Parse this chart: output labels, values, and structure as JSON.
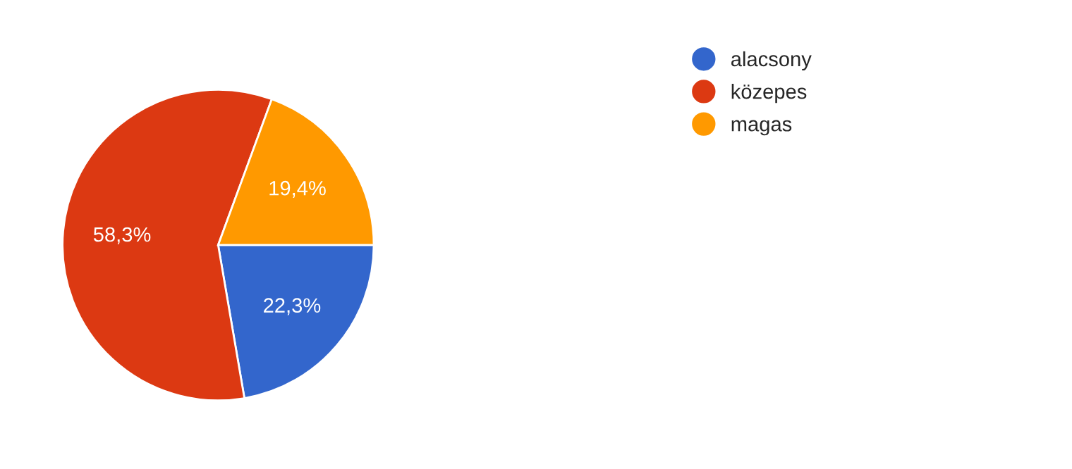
{
  "chart_data": {
    "type": "pie",
    "categories": [
      "alacsony",
      "közepes",
      "magas"
    ],
    "values": [
      22.3,
      58.3,
      19.4
    ],
    "value_labels": [
      "22,3%",
      "58,3%",
      "19,4%"
    ],
    "colors": [
      "#3366cc",
      "#dc3912",
      "#ff9900"
    ],
    "legend": "top right"
  }
}
